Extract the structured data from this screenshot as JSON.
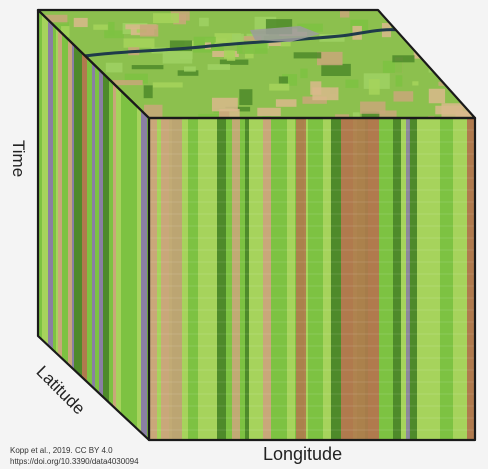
{
  "axes": {
    "time": "Time",
    "latitude": "Latitude",
    "longitude": "Longitude"
  },
  "credit": {
    "line1": "Kopp et al., 2019.  CC BY 4.0",
    "line2": "https://doi.org/10.3390/data4030094"
  },
  "colors": {
    "green": "#7dc242",
    "light_green": "#a6d35c",
    "dark_green": "#4e8a2a",
    "tan": "#c9a77a",
    "brown": "#b07a4e",
    "purple": "#8a7fa3",
    "edge": "#1a1a1a"
  }
}
